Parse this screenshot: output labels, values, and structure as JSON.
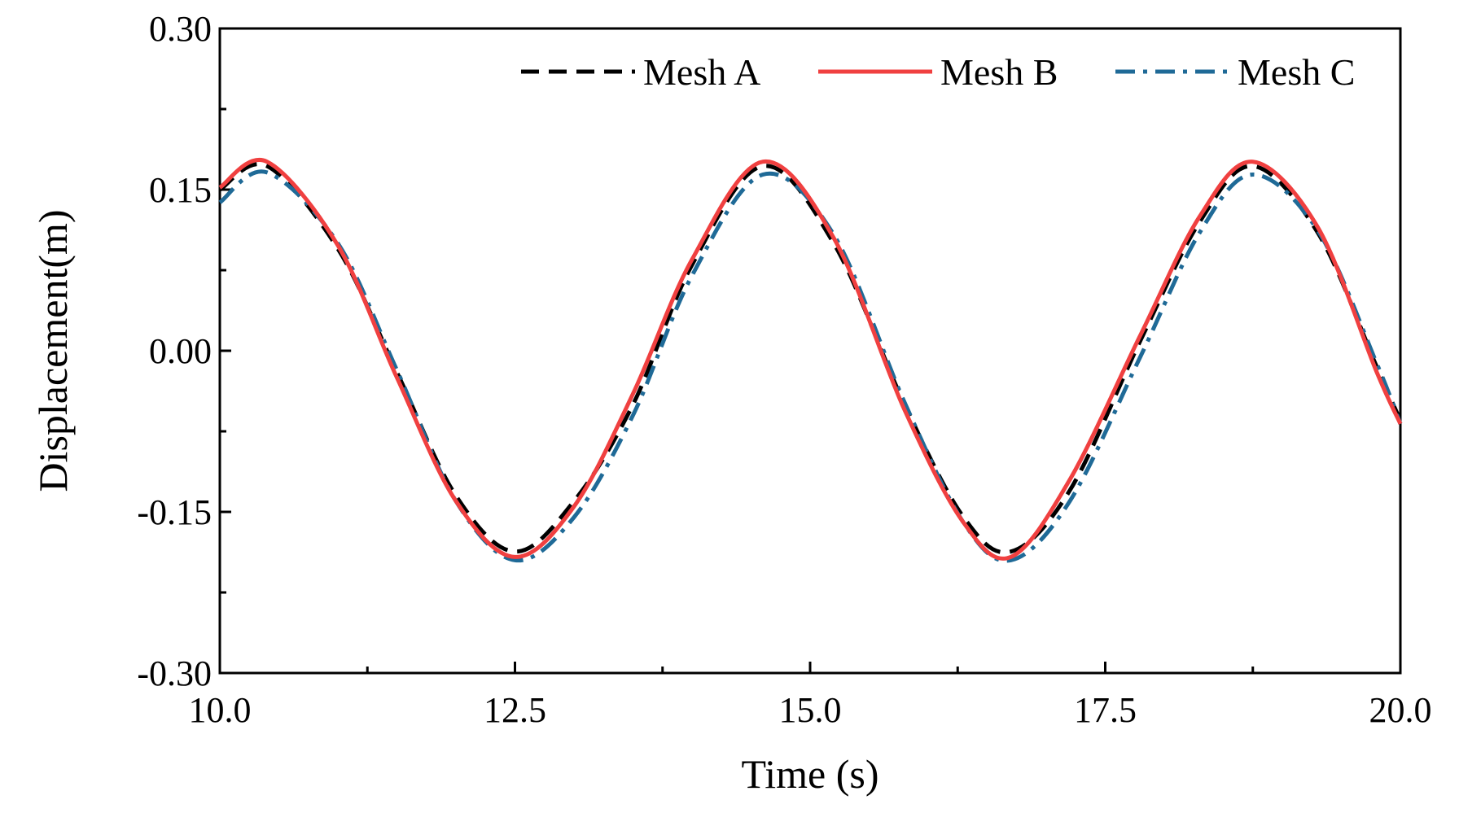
{
  "chart_data": {
    "type": "line",
    "title": "",
    "xlabel": "Time (s)",
    "ylabel": "Displacement(m)",
    "xlim": [
      10.0,
      20.0
    ],
    "ylim": [
      -0.3,
      0.3
    ],
    "xticks": [
      10.0,
      12.5,
      15.0,
      17.5,
      20.0
    ],
    "xtick_labels": [
      "10.0",
      "12.5",
      "15.0",
      "17.5",
      "20.0"
    ],
    "yticks": [
      -0.3,
      -0.15,
      0.0,
      0.15,
      0.3
    ],
    "ytick_labels": [
      "-0.30",
      "-0.15",
      "0.00",
      "0.15",
      "0.30"
    ],
    "grid": false,
    "legend_position": "top-right",
    "series": [
      {
        "name": "Mesh A",
        "color": "#000000",
        "style": "dashed",
        "x": [
          10.0,
          10.4,
          11.0,
          11.5,
          12.0,
          12.5,
          13.0,
          13.5,
          14.0,
          14.6,
          15.2,
          15.8,
          16.3,
          16.7,
          17.2,
          17.8,
          18.3,
          18.75,
          19.3,
          19.8,
          20.0
        ],
        "values": [
          0.15,
          0.172,
          0.095,
          -0.02,
          -0.135,
          -0.187,
          -0.14,
          -0.05,
          0.08,
          0.172,
          0.1,
          -0.05,
          -0.155,
          -0.187,
          -0.13,
          0.01,
          0.12,
          0.172,
          0.11,
          -0.015,
          -0.065
        ]
      },
      {
        "name": "Mesh B",
        "color": "#f04040",
        "style": "solid",
        "x": [
          10.0,
          10.4,
          11.0,
          11.5,
          12.0,
          12.5,
          13.0,
          13.5,
          14.0,
          14.6,
          15.2,
          15.8,
          16.3,
          16.7,
          17.2,
          17.8,
          18.3,
          18.75,
          19.3,
          19.8,
          20.0
        ],
        "values": [
          0.152,
          0.176,
          0.098,
          -0.025,
          -0.14,
          -0.192,
          -0.145,
          -0.04,
          0.085,
          0.176,
          0.105,
          -0.055,
          -0.16,
          -0.192,
          -0.12,
          0.015,
          0.125,
          0.176,
          0.115,
          -0.02,
          -0.068
        ]
      },
      {
        "name": "Mesh C",
        "color": "#1f6a97",
        "style": "dashdot",
        "x": [
          10.0,
          10.4,
          11.0,
          11.5,
          12.0,
          12.5,
          13.0,
          13.5,
          14.0,
          14.6,
          15.2,
          15.8,
          16.3,
          16.7,
          17.2,
          17.8,
          18.3,
          18.75,
          19.3,
          19.8,
          20.0
        ],
        "values": [
          0.138,
          0.166,
          0.1,
          -0.018,
          -0.14,
          -0.195,
          -0.155,
          -0.06,
          0.07,
          0.164,
          0.108,
          -0.048,
          -0.16,
          -0.195,
          -0.14,
          -0.005,
          0.11,
          0.164,
          0.112,
          -0.012,
          -0.068
        ]
      }
    ]
  }
}
